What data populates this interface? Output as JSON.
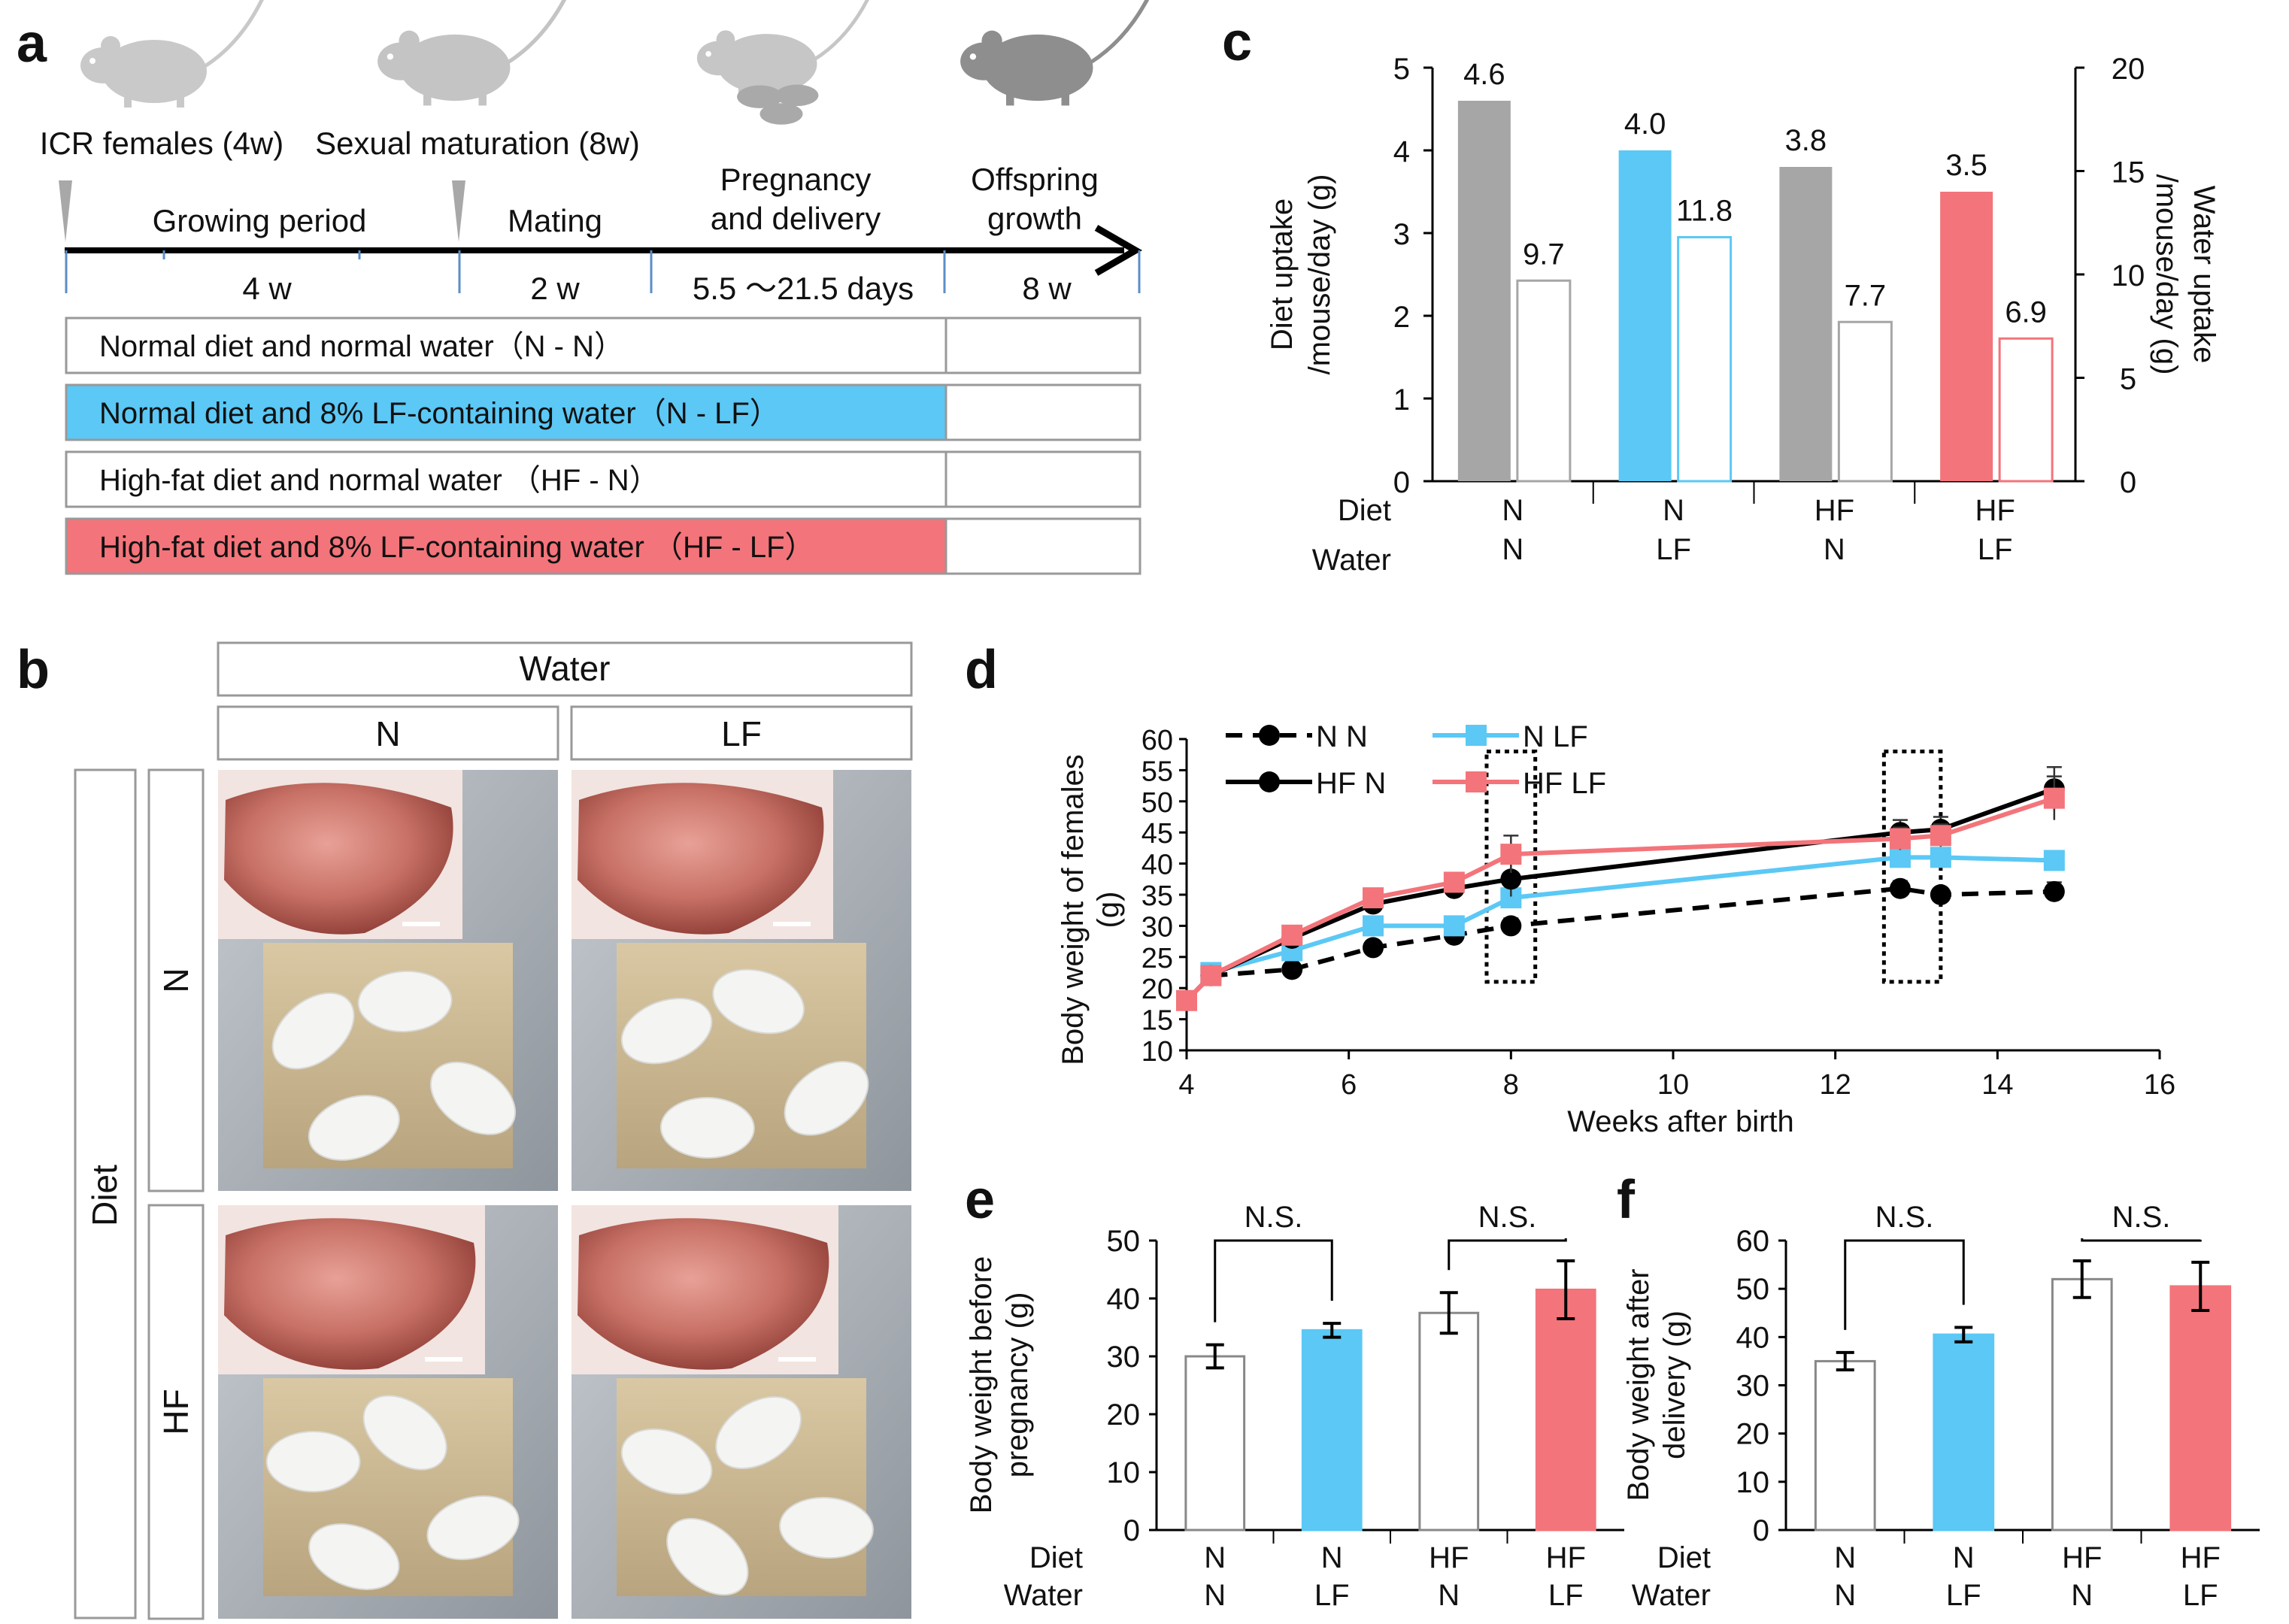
{
  "panel_letters": {
    "a": "a",
    "b": "b",
    "c": "c",
    "d": "d",
    "e": "e",
    "f": "f"
  },
  "colors": {
    "blue": "#5bc8f5",
    "red": "#f3747a",
    "gray": "#a6a6a6",
    "black": "#000000",
    "dark_gray": "#555555"
  },
  "panel_a": {
    "stages": [
      "ICR females (4w)",
      "Sexual maturation (8w)"
    ],
    "periods": [
      {
        "name_lines": [
          "Growing period"
        ],
        "duration": "4 w"
      },
      {
        "name_lines": [
          "Mating"
        ],
        "duration": "2 w"
      },
      {
        "name_lines": [
          "Pregnancy",
          "and delivery"
        ],
        "duration": "5.5 ～21.5 days"
      },
      {
        "name_lines": [
          "Offspring",
          "growth"
        ],
        "duration": "8 w"
      }
    ],
    "groups": [
      {
        "label": "Normal diet and normal water（N - N）",
        "fill": "none"
      },
      {
        "label": "Normal diet and 8% LF-containing water（N - LF）",
        "fill": "blue"
      },
      {
        "label": "High-fat diet and normal water （HF - N）",
        "fill": "none"
      },
      {
        "label": "High-fat diet and 8% LF-containing water （HF - LF）",
        "fill": "red"
      }
    ],
    "icons": [
      "mouse-icon",
      "mouse-icon",
      "pregnant-mouse-with-pups-icon",
      "offspring-mouse-icon"
    ]
  },
  "panel_b": {
    "water_header": "Water",
    "diet_header": "Diet",
    "water_columns": [
      "N",
      "LF"
    ],
    "diet_rows": [
      "N",
      "HF"
    ],
    "photos": [
      "liver-and-mice-photo-N-N",
      "liver-and-mice-photo-N-LF",
      "liver-and-mice-photo-HF-N",
      "liver-and-mice-photo-HF-LF"
    ]
  },
  "chart_data": [
    {
      "id": "c",
      "type": "bar",
      "ylabel_left": [
        "Diet uptake",
        "/mouse/day (g)"
      ],
      "ylabel_right": [
        "Water uptake",
        "/mouse/day (g)"
      ],
      "ylim_left": [
        0,
        5
      ],
      "ylim_right": [
        0,
        20
      ],
      "yticks_left": [
        "0",
        "1",
        "2",
        "3",
        "4",
        "5"
      ],
      "yticks_right": [
        "0",
        "5",
        "10",
        "15",
        "20"
      ],
      "row_labels": [
        "Diet",
        "Water"
      ],
      "groups": [
        {
          "diet": "N",
          "water": "N",
          "diet_uptake": 4.6,
          "water_uptake": 9.7,
          "diet_label": "4.6",
          "water_label": "9.7",
          "color": "gray",
          "edge": "gray"
        },
        {
          "diet": "N",
          "water": "LF",
          "diet_uptake": 4.0,
          "water_uptake": 11.8,
          "diet_label": "4.0",
          "water_label": "11.8",
          "color": "blue",
          "edge": "blue"
        },
        {
          "diet": "HF",
          "water": "N",
          "diet_uptake": 3.8,
          "water_uptake": 7.7,
          "diet_label": "3.8",
          "water_label": "7.7",
          "color": "gray",
          "edge": "gray"
        },
        {
          "diet": "HF",
          "water": "LF",
          "diet_uptake": 3.5,
          "water_uptake": 6.9,
          "diet_label": "3.5",
          "water_label": "6.9",
          "color": "red",
          "edge": "red"
        }
      ]
    },
    {
      "id": "d",
      "type": "line",
      "xlabel": "Weeks after birth",
      "ylabel": [
        "Body weight of females",
        "(g)"
      ],
      "xlim": [
        4,
        16
      ],
      "ylim": [
        10,
        60
      ],
      "xticks": [
        "4",
        "6",
        "8",
        "10",
        "12",
        "14",
        "16"
      ],
      "yticks": [
        "10",
        "15",
        "20",
        "25",
        "30",
        "35",
        "40",
        "45",
        "50",
        "55",
        "60"
      ],
      "highlight_x_ranges": [
        [
          7.7,
          8.3
        ],
        [
          12.6,
          13.3
        ]
      ],
      "series": [
        {
          "name": "N N",
          "color": "black",
          "dashed": true,
          "marker": "circle",
          "x": [
            4.3,
            5.3,
            6.3,
            7.3,
            8.0,
            12.8,
            13.3,
            14.7
          ],
          "y": [
            22,
            23,
            26.5,
            28.5,
            30,
            36,
            35,
            35.5
          ],
          "err": [
            0.8,
            0.8,
            0.9,
            1.0,
            1.2,
            1.2,
            1.0,
            1.5
          ]
        },
        {
          "name": "N LF",
          "color": "blue",
          "dashed": false,
          "marker": "square",
          "x": [
            4.3,
            5.3,
            6.3,
            7.3,
            8.0,
            12.8,
            13.3,
            14.7
          ],
          "y": [
            22.5,
            26,
            30,
            30,
            34.5,
            41,
            41,
            40.5
          ],
          "err": [
            0.8,
            0.8,
            1.0,
            1.0,
            1.0,
            1.0,
            1.2,
            1.2
          ]
        },
        {
          "name": "HF N",
          "color": "black",
          "dashed": false,
          "marker": "circle",
          "x": [
            4.0,
            4.3,
            5.3,
            6.3,
            7.3,
            8.0,
            12.8,
            13.3,
            14.7
          ],
          "y": [
            18,
            22,
            28,
            33.5,
            36,
            37.5,
            45,
            45.5,
            52
          ],
          "err": [
            0.8,
            0.8,
            1.0,
            1.0,
            1.2,
            2.8,
            2.0,
            2.0,
            3.5
          ]
        },
        {
          "name": "HF LF",
          "color": "red",
          "dashed": false,
          "marker": "square",
          "x": [
            4.0,
            4.3,
            5.3,
            6.3,
            7.3,
            8.0,
            12.8,
            13.3,
            14.7
          ],
          "y": [
            18,
            22,
            28.5,
            34.5,
            37,
            41.5,
            44,
            44.5,
            50.5
          ],
          "err": [
            0.8,
            0.8,
            1.0,
            1.2,
            1.5,
            3.0,
            1.8,
            1.8,
            3.5
          ]
        }
      ]
    },
    {
      "id": "e",
      "type": "bar",
      "ylabel": [
        "Body weight before",
        "pregnancy (g)"
      ],
      "ylim": [
        0,
        50
      ],
      "yticks": [
        "0",
        "10",
        "20",
        "30",
        "40",
        "50"
      ],
      "row_labels": [
        "Diet",
        "Water"
      ],
      "significance": [
        "N.S.",
        "N.S."
      ],
      "groups": [
        {
          "diet": "N",
          "water": "N",
          "value": 30,
          "err": 2,
          "fill": "none"
        },
        {
          "diet": "N",
          "water": "LF",
          "value": 34.5,
          "err": 1.2,
          "fill": "blue"
        },
        {
          "diet": "HF",
          "water": "N",
          "value": 37.5,
          "err": 3.5,
          "fill": "none"
        },
        {
          "diet": "HF",
          "water": "LF",
          "value": 41.5,
          "err": 5,
          "fill": "red"
        }
      ]
    },
    {
      "id": "f",
      "type": "bar",
      "ylabel": [
        "Body weight after",
        "delivery (g)"
      ],
      "ylim": [
        0,
        60
      ],
      "yticks": [
        "0",
        "10",
        "20",
        "30",
        "40",
        "50",
        "60"
      ],
      "row_labels": [
        "Diet",
        "Water"
      ],
      "significance": [
        "N.S.",
        "N.S."
      ],
      "groups": [
        {
          "diet": "N",
          "water": "N",
          "value": 35,
          "err": 1.8,
          "fill": "none"
        },
        {
          "diet": "N",
          "water": "LF",
          "value": 40.5,
          "err": 1.5,
          "fill": "blue"
        },
        {
          "diet": "HF",
          "water": "N",
          "value": 52,
          "err": 3.8,
          "fill": "none"
        },
        {
          "diet": "HF",
          "water": "LF",
          "value": 50.5,
          "err": 5,
          "fill": "red"
        }
      ]
    }
  ]
}
